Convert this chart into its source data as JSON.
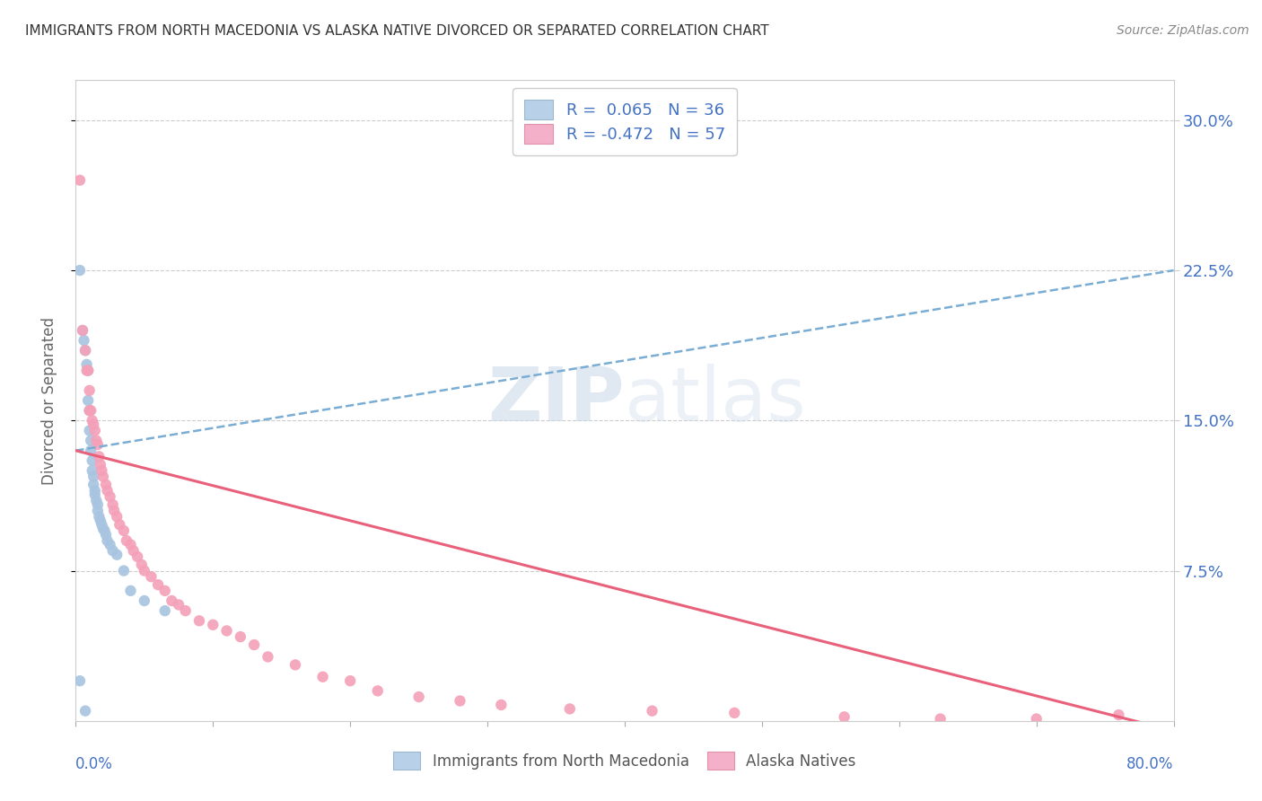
{
  "title": "IMMIGRANTS FROM NORTH MACEDONIA VS ALASKA NATIVE DIVORCED OR SEPARATED CORRELATION CHART",
  "source": "Source: ZipAtlas.com",
  "ylabel": "Divorced or Separated",
  "ytick_vals": [
    0.075,
    0.15,
    0.225,
    0.3
  ],
  "ytick_labels": [
    "7.5%",
    "15.0%",
    "22.5%",
    "30.0%"
  ],
  "xlim": [
    0.0,
    0.8
  ],
  "ylim": [
    0.0,
    0.32
  ],
  "legend_label1": "R =  0.065   N = 36",
  "legend_label2": "R = -0.472   N = 57",
  "legend_bottom_label1": "Immigrants from North Macedonia",
  "legend_bottom_label2": "Alaska Natives",
  "color_blue": "#a8c4e0",
  "color_pink": "#f4a0b8",
  "line_blue_color": "#7aadd4",
  "line_pink_color": "#e8607a",
  "watermark_text": "ZIPAtlas",
  "blue_line_y0": 0.135,
  "blue_line_y1": 0.225,
  "pink_line_y0": 0.135,
  "pink_line_y1": -0.005,
  "blue_scatter_x": [
    0.003,
    0.005,
    0.006,
    0.007,
    0.008,
    0.009,
    0.009,
    0.01,
    0.01,
    0.011,
    0.011,
    0.012,
    0.012,
    0.013,
    0.013,
    0.014,
    0.014,
    0.015,
    0.016,
    0.016,
    0.017,
    0.018,
    0.019,
    0.02,
    0.021,
    0.022,
    0.023,
    0.025,
    0.027,
    0.03,
    0.035,
    0.04,
    0.05,
    0.065,
    0.003,
    0.007
  ],
  "blue_scatter_y": [
    0.225,
    0.195,
    0.19,
    0.185,
    0.178,
    0.175,
    0.16,
    0.155,
    0.145,
    0.14,
    0.135,
    0.13,
    0.125,
    0.122,
    0.118,
    0.115,
    0.113,
    0.11,
    0.108,
    0.105,
    0.102,
    0.1,
    0.098,
    0.096,
    0.095,
    0.093,
    0.09,
    0.088,
    0.085,
    0.083,
    0.075,
    0.065,
    0.06,
    0.055,
    0.02,
    0.005
  ],
  "pink_scatter_x": [
    0.003,
    0.005,
    0.007,
    0.008,
    0.009,
    0.01,
    0.01,
    0.011,
    0.012,
    0.013,
    0.014,
    0.015,
    0.016,
    0.017,
    0.018,
    0.019,
    0.02,
    0.022,
    0.023,
    0.025,
    0.027,
    0.028,
    0.03,
    0.032,
    0.035,
    0.037,
    0.04,
    0.042,
    0.045,
    0.048,
    0.05,
    0.055,
    0.06,
    0.065,
    0.07,
    0.075,
    0.08,
    0.09,
    0.1,
    0.11,
    0.12,
    0.13,
    0.14,
    0.16,
    0.18,
    0.2,
    0.22,
    0.25,
    0.28,
    0.31,
    0.36,
    0.42,
    0.48,
    0.56,
    0.63,
    0.7,
    0.76
  ],
  "pink_scatter_y": [
    0.27,
    0.195,
    0.185,
    0.175,
    0.175,
    0.165,
    0.155,
    0.155,
    0.15,
    0.148,
    0.145,
    0.14,
    0.138,
    0.132,
    0.128,
    0.125,
    0.122,
    0.118,
    0.115,
    0.112,
    0.108,
    0.105,
    0.102,
    0.098,
    0.095,
    0.09,
    0.088,
    0.085,
    0.082,
    0.078,
    0.075,
    0.072,
    0.068,
    0.065,
    0.06,
    0.058,
    0.055,
    0.05,
    0.048,
    0.045,
    0.042,
    0.038,
    0.032,
    0.028,
    0.022,
    0.02,
    0.015,
    0.012,
    0.01,
    0.008,
    0.006,
    0.005,
    0.004,
    0.002,
    0.001,
    0.001,
    0.003
  ]
}
